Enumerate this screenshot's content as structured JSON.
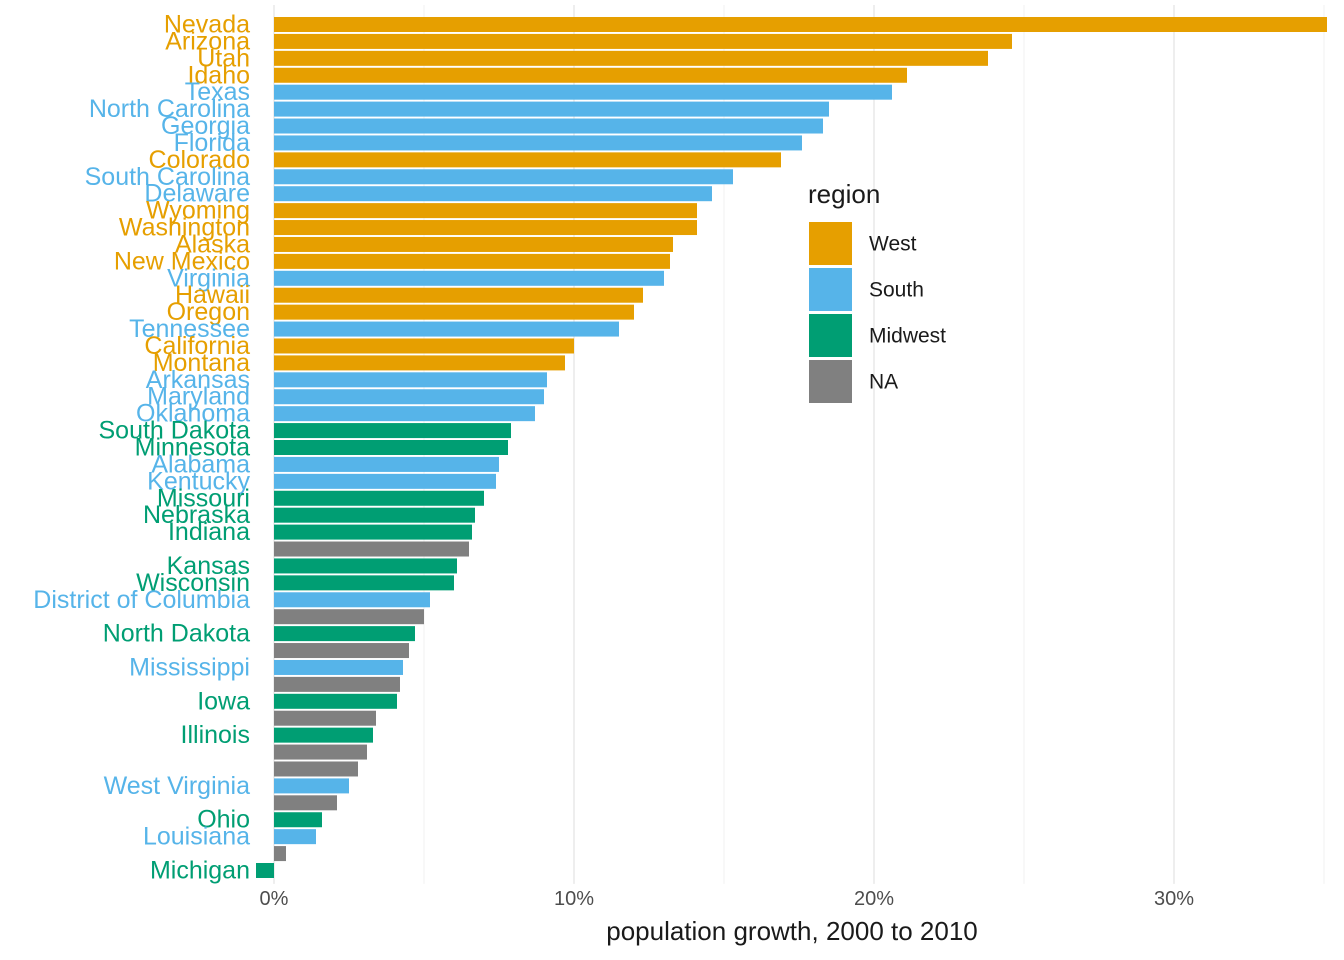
{
  "chart_data": {
    "type": "bar",
    "orientation": "horizontal",
    "xlabel": "population growth, 2000 to 2010",
    "ylabel": "",
    "xlim": [
      -0.5,
      35.1
    ],
    "xticks": [
      {
        "value": 0,
        "label": "0%"
      },
      {
        "value": 10,
        "label": "10%"
      },
      {
        "value": 20,
        "label": "20%"
      },
      {
        "value": 30,
        "label": "30%"
      }
    ],
    "grid": true,
    "legend": {
      "title": "region",
      "placement": "right-inside",
      "entries": [
        {
          "name": "West",
          "color": "#E69F00"
        },
        {
          "name": "South",
          "color": "#56B4E9"
        },
        {
          "name": "Midwest",
          "color": "#009E73"
        },
        {
          "name": "NA",
          "color": "#808080"
        }
      ]
    },
    "bars": [
      {
        "label": "Nevada",
        "region": "West",
        "value": 35.1
      },
      {
        "label": "Arizona",
        "region": "West",
        "value": 24.6
      },
      {
        "label": "Utah",
        "region": "West",
        "value": 23.8
      },
      {
        "label": "Idaho",
        "region": "West",
        "value": 21.1
      },
      {
        "label": "Texas",
        "region": "South",
        "value": 20.6
      },
      {
        "label": "North Carolina",
        "region": "South",
        "value": 18.5
      },
      {
        "label": "Georgia",
        "region": "South",
        "value": 18.3
      },
      {
        "label": "Florida",
        "region": "South",
        "value": 17.6
      },
      {
        "label": "Colorado",
        "region": "West",
        "value": 16.9
      },
      {
        "label": "South Carolina",
        "region": "South",
        "value": 15.3
      },
      {
        "label": "Delaware",
        "region": "South",
        "value": 14.6
      },
      {
        "label": "Wyoming",
        "region": "West",
        "value": 14.1
      },
      {
        "label": "Washington",
        "region": "West",
        "value": 14.1
      },
      {
        "label": "Alaska",
        "region": "West",
        "value": 13.3
      },
      {
        "label": "New Mexico",
        "region": "West",
        "value": 13.2
      },
      {
        "label": "Virginia",
        "region": "South",
        "value": 13.0
      },
      {
        "label": "Hawaii",
        "region": "West",
        "value": 12.3
      },
      {
        "label": "Oregon",
        "region": "West",
        "value": 12.0
      },
      {
        "label": "Tennessee",
        "region": "South",
        "value": 11.5
      },
      {
        "label": "California",
        "region": "West",
        "value": 10.0
      },
      {
        "label": "Montana",
        "region": "West",
        "value": 9.7
      },
      {
        "label": "Arkansas",
        "region": "South",
        "value": 9.1
      },
      {
        "label": "Maryland",
        "region": "South",
        "value": 9.0
      },
      {
        "label": "Oklahoma",
        "region": "South",
        "value": 8.7
      },
      {
        "label": "South Dakota",
        "region": "Midwest",
        "value": 7.9
      },
      {
        "label": "Minnesota",
        "region": "Midwest",
        "value": 7.8
      },
      {
        "label": "Alabama",
        "region": "South",
        "value": 7.5
      },
      {
        "label": "Kentucky",
        "region": "South",
        "value": 7.4
      },
      {
        "label": "Missouri",
        "region": "Midwest",
        "value": 7.0
      },
      {
        "label": "Nebraska",
        "region": "Midwest",
        "value": 6.7
      },
      {
        "label": "Indiana",
        "region": "Midwest",
        "value": 6.6
      },
      {
        "label": "",
        "region": "NA",
        "value": 6.5
      },
      {
        "label": "Kansas",
        "region": "Midwest",
        "value": 6.1
      },
      {
        "label": "Wisconsin",
        "region": "Midwest",
        "value": 6.0
      },
      {
        "label": "District of Columbia",
        "region": "South",
        "value": 5.2
      },
      {
        "label": "",
        "region": "NA",
        "value": 5.0
      },
      {
        "label": "North Dakota",
        "region": "Midwest",
        "value": 4.7
      },
      {
        "label": "",
        "region": "NA",
        "value": 4.5
      },
      {
        "label": "Mississippi",
        "region": "South",
        "value": 4.3
      },
      {
        "label": "",
        "region": "NA",
        "value": 4.2
      },
      {
        "label": "Iowa",
        "region": "Midwest",
        "value": 4.1
      },
      {
        "label": "",
        "region": "NA",
        "value": 3.4
      },
      {
        "label": "Illinois",
        "region": "Midwest",
        "value": 3.3
      },
      {
        "label": "",
        "region": "NA",
        "value": 3.1
      },
      {
        "label": "",
        "region": "NA",
        "value": 2.8
      },
      {
        "label": "West Virginia",
        "region": "South",
        "value": 2.5
      },
      {
        "label": "",
        "region": "NA",
        "value": 2.1
      },
      {
        "label": "Ohio",
        "region": "Midwest",
        "value": 1.6
      },
      {
        "label": "Louisiana",
        "region": "South",
        "value": 1.4
      },
      {
        "label": "",
        "region": "NA",
        "value": 0.4
      },
      {
        "label": "Michigan",
        "region": "Midwest",
        "value": -0.6
      }
    ]
  }
}
